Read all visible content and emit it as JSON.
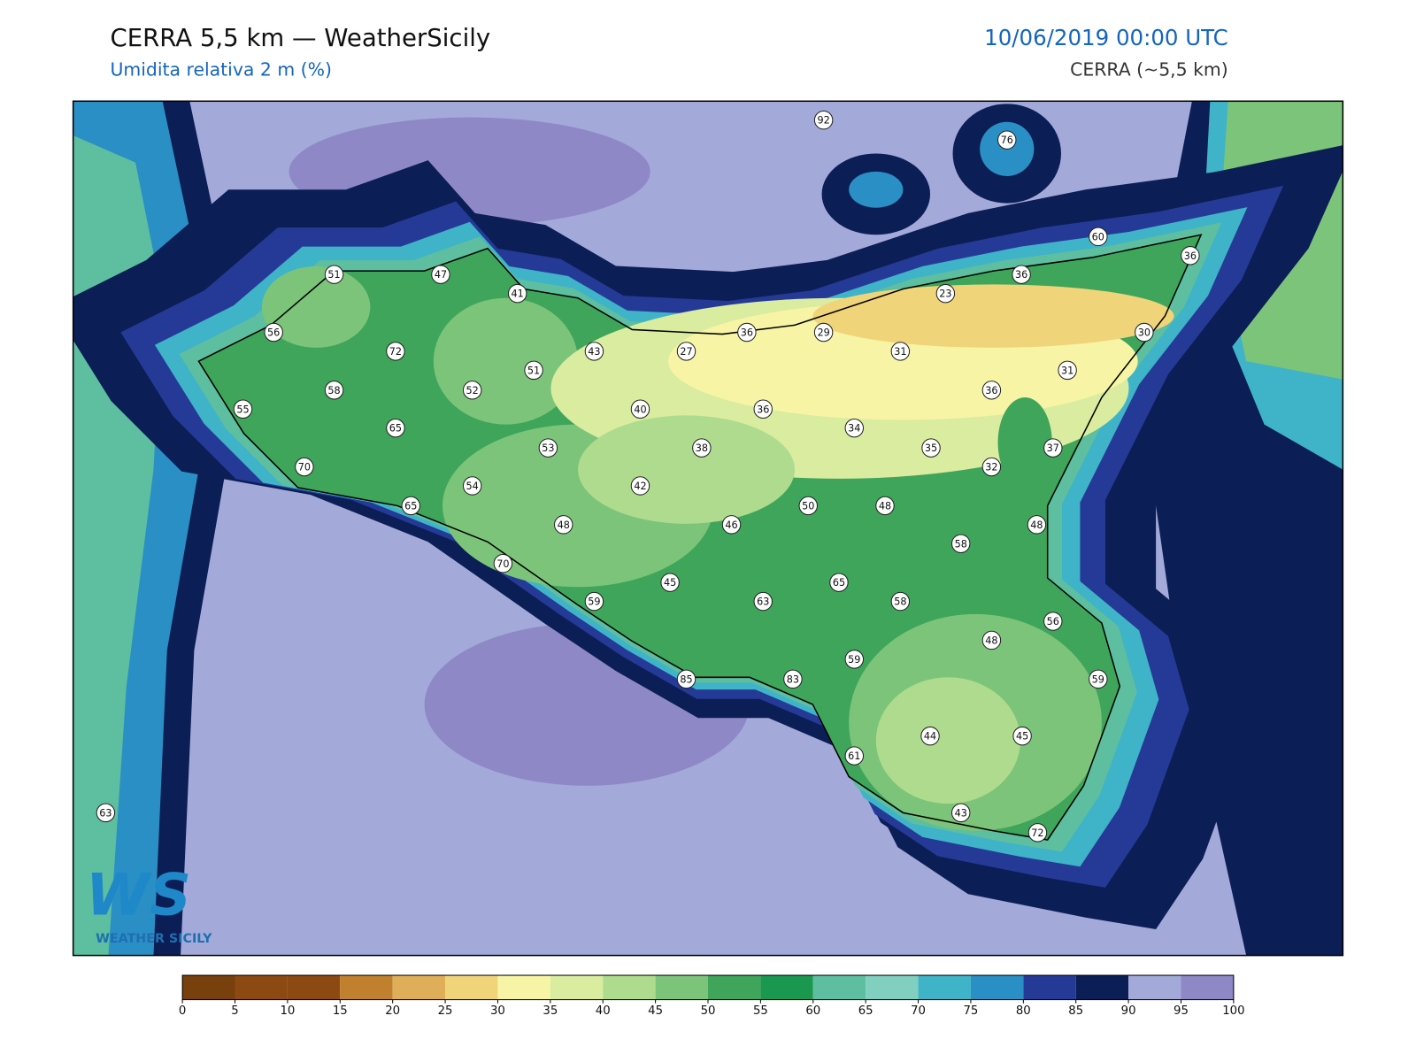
{
  "header": {
    "title": "CERRA 5,5 km — WeatherSicily",
    "subtitle": "Umidita relativa 2 m (%)",
    "date": "10/06/2019 00:00 UTC",
    "model": "CERRA (~5,5 km)"
  },
  "logo": {
    "mark": "WS",
    "name": "WEATHER SICILY"
  },
  "stations": [
    92,
    76,
    60,
    36,
    36,
    23,
    51,
    47,
    41,
    56,
    36,
    29,
    30,
    72,
    43,
    27,
    31,
    51,
    31,
    58,
    52,
    36,
    55,
    40,
    36,
    65,
    34,
    53,
    38,
    35,
    37,
    70,
    32,
    54,
    42,
    65,
    50,
    48,
    48,
    46,
    48,
    58,
    70,
    45,
    65,
    59,
    63,
    58,
    56,
    48,
    59,
    85,
    83,
    59,
    44,
    45,
    61,
    63,
    43,
    72
  ],
  "colorbar": {
    "ticks": [
      0,
      5,
      10,
      15,
      20,
      25,
      30,
      35,
      40,
      45,
      50,
      55,
      60,
      65,
      70,
      75,
      80,
      85,
      90,
      95,
      100
    ],
    "colors": [
      "#77400c",
      "#8c4a12",
      "#8c4a12",
      "#c0802e",
      "#dfae58",
      "#f0d47a",
      "#f7f4a6",
      "#d9eca0",
      "#aedb8d",
      "#7cc47a",
      "#3ea55b",
      "#1a9850",
      "#5dbea0",
      "#80cfbf",
      "#3fb3c8",
      "#2a8fc4",
      "#253a96",
      "#0c1e56",
      "#a3a9d9",
      "#8e88c6"
    ]
  }
}
